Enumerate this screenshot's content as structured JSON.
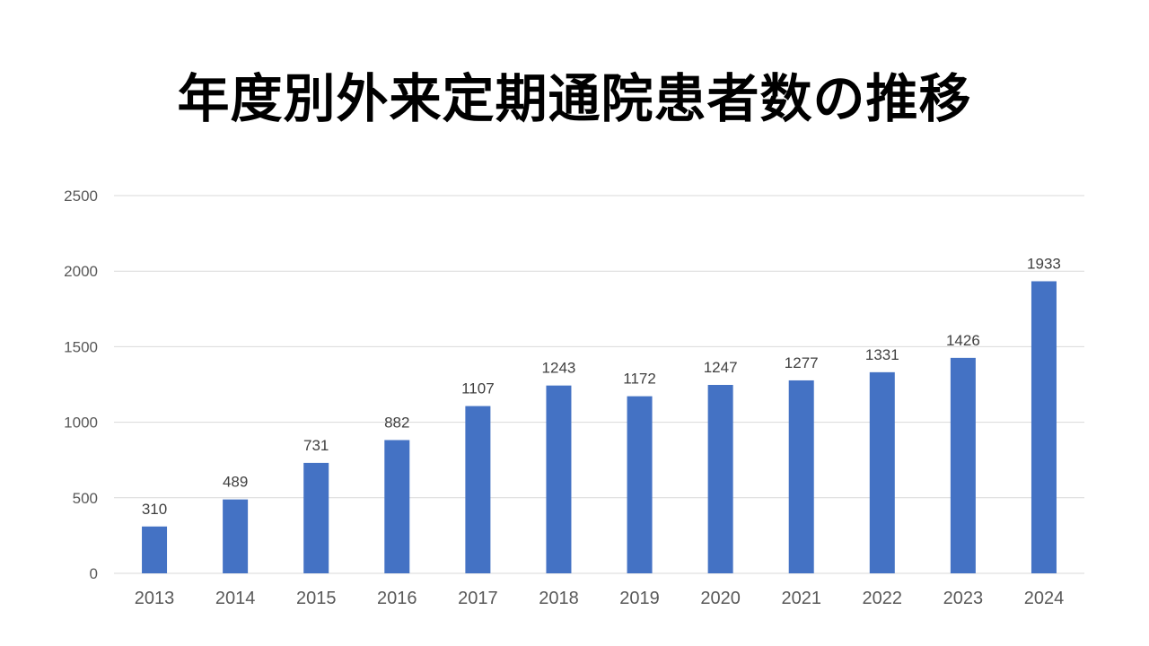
{
  "chart_data": {
    "type": "bar",
    "title": "年度別外来定期通院患者数の推移",
    "categories": [
      "2013",
      "2014",
      "2015",
      "2016",
      "2017",
      "2018",
      "2019",
      "2020",
      "2021",
      "2022",
      "2023",
      "2024"
    ],
    "values": [
      310,
      489,
      731,
      882,
      1107,
      1243,
      1172,
      1247,
      1277,
      1331,
      1426,
      1933
    ],
    "data_labels": [
      "310",
      "489",
      "731",
      "882",
      "1107",
      "1243",
      "1172",
      "1247",
      "1277",
      "1331",
      "1426",
      "1933"
    ],
    "xlabel": "",
    "ylabel": "",
    "ylim": [
      0,
      2500
    ],
    "yticks": [
      0,
      500,
      1000,
      1500,
      2000,
      2500
    ],
    "ytick_labels": [
      "0",
      "500",
      "1000",
      "1500",
      "2000",
      "2500"
    ],
    "grid": true,
    "legend": "none",
    "bar_color": "#4472C4",
    "grid_color": "#D9D9D9"
  }
}
